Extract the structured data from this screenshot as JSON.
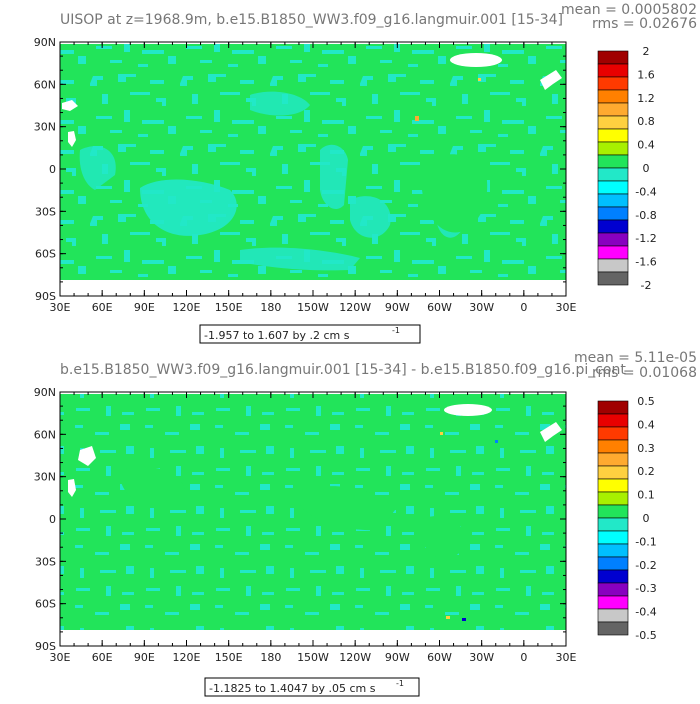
{
  "chart_data": [
    {
      "type": "heatmap",
      "title": "UISOP at z=1968.9m, b.e15.B1850_WW3.f09_g16.langmuir.001 [15-34]",
      "stats": {
        "mean": "mean = 0.0005802",
        "rms": "rms = 0.02676"
      },
      "x_ticks": [
        "30E",
        "60E",
        "90E",
        "120E",
        "150E",
        "180",
        "150W",
        "120W",
        "90W",
        "60W",
        "30W",
        "0",
        "30E"
      ],
      "y_ticks": [
        "90N",
        "60N",
        "30N",
        "0",
        "30S",
        "60S",
        "90S"
      ],
      "xlim": [
        30,
        390
      ],
      "ylim": [
        -90,
        90
      ],
      "range_label": "-1.957 to 1.607 by .2 cm s",
      "range_unit_exp": "-1",
      "colorbar": {
        "colors": [
          "#a00000",
          "#e80000",
          "#ff3a00",
          "#ff8000",
          "#ffaa30",
          "#ffd040",
          "#ffff00",
          "#a8f000",
          "#22e45a",
          "#22e8c8",
          "#00ffff",
          "#00c0ff",
          "#0080ff",
          "#0000d0",
          "#8800c0",
          "#ff00ff",
          "#c8c8c8",
          "#646464"
        ],
        "labels": [
          "2",
          "1.6",
          "1.2",
          "0.8",
          "0.4",
          "0",
          "-0.4",
          "-0.8",
          "-1.2",
          "-1.6",
          "-2"
        ]
      }
    },
    {
      "type": "heatmap",
      "title": "b.e15.B1850_WW3.f09_g16.langmuir.001 [15-34] - b.e15.B1850.f09_g16.pi_cont",
      "stats": {
        "mean": "mean = 5.11e-05",
        "rms": "rms = 0.01068"
      },
      "x_ticks": [
        "30E",
        "60E",
        "90E",
        "120E",
        "150E",
        "180",
        "150W",
        "120W",
        "90W",
        "60W",
        "30W",
        "0",
        "30E"
      ],
      "y_ticks": [
        "90N",
        "60N",
        "30N",
        "0",
        "30S",
        "60S",
        "90S"
      ],
      "xlim": [
        30,
        390
      ],
      "ylim": [
        -90,
        90
      ],
      "range_label": "-1.1825 to 1.4047 by .05 cm s",
      "range_unit_exp": "-1",
      "colorbar": {
        "colors": [
          "#a00000",
          "#e80000",
          "#ff3a00",
          "#ff8000",
          "#ffaa30",
          "#ffd040",
          "#ffff00",
          "#a8f000",
          "#22e45a",
          "#22e8c8",
          "#00ffff",
          "#00c0ff",
          "#0080ff",
          "#0000d0",
          "#8800c0",
          "#ff00ff",
          "#c8c8c8",
          "#646464"
        ],
        "labels": [
          "0.5",
          "0.4",
          "0.3",
          "0.2",
          "0.1",
          "0",
          "-0.1",
          "-0.2",
          "-0.3",
          "-0.4",
          "-0.5"
        ]
      }
    }
  ],
  "colors": {
    "field_green": "#22e45a",
    "field_cyan": "#22e8c8",
    "land": "#ffffff"
  }
}
